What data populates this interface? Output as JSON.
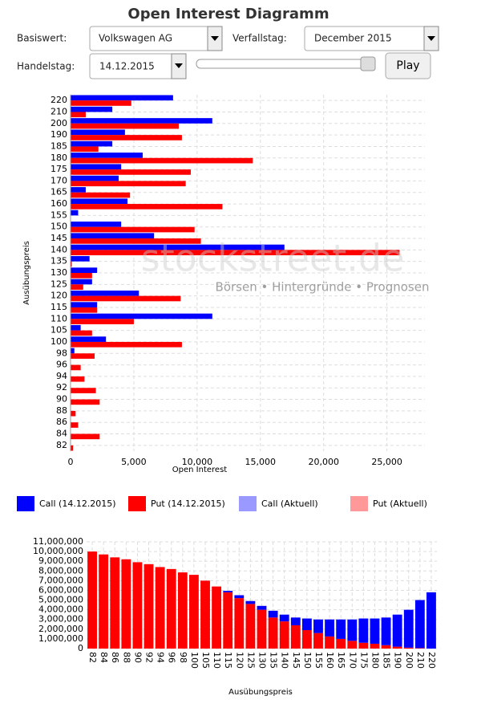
{
  "header": {
    "title": "Open Interest Diagramm"
  },
  "controls": {
    "basiswert_label": "Basiswert:",
    "basiswert_value": "Volkswagen AG",
    "verfallstag_label": "Verfallstag:",
    "verfallstag_value": "December 2015",
    "handelstag_label": "Handelstag:",
    "handelstag_value": "14.12.2015",
    "play": "Play"
  },
  "watermark": {
    "brand": "stockstreet.de",
    "tagline": "Börsen • Hintergründe • Prognosen"
  },
  "chart_data": [
    {
      "type": "barh",
      "xlabel": "Open Interest",
      "ylabel": "Ausübungspreis",
      "grid": true,
      "categories": [
        "82",
        "84",
        "86",
        "88",
        "90",
        "92",
        "94",
        "96",
        "98",
        "100",
        "105",
        "110",
        "115",
        "120",
        "125",
        "130",
        "135",
        "140",
        "145",
        "150",
        "155",
        "160",
        "165",
        "170",
        "175",
        "180",
        "185",
        "190",
        "200",
        "210",
        "220"
      ],
      "series": [
        {
          "name": "Call (14.12.2015)",
          "color": "#0000ff",
          "values": [
            0,
            0,
            0,
            0,
            0,
            0,
            0,
            0,
            300,
            2800,
            800,
            11200,
            2100,
            5400,
            1700,
            2100,
            1500,
            16900,
            6600,
            4000,
            600,
            4500,
            1200,
            3800,
            4000,
            5700,
            3300,
            4300,
            11200,
            3300,
            8100
          ]
        },
        {
          "name": "Put (14.12.2015)",
          "color": "#ff0000",
          "values": [
            200,
            2300,
            600,
            400,
            2300,
            2000,
            1100,
            800,
            1900,
            8800,
            1700,
            5000,
            2100,
            8700,
            1000,
            1700,
            100,
            26000,
            10300,
            9800,
            0,
            12000,
            4700,
            9100,
            9500,
            14400,
            2200,
            8800,
            8550,
            1200,
            4800
          ]
        }
      ],
      "xlim": [
        0,
        28000
      ],
      "xticks": [
        0,
        {
          "value": 5000,
          "label": "5,000"
        },
        {
          "value": 10000,
          "label": "10,000"
        },
        {
          "value": 15000,
          "label": "15,000"
        },
        {
          "value": 20000,
          "label": "20,000"
        },
        {
          "value": 25000,
          "label": "25,000"
        }
      ]
    },
    {
      "type": "stacked_bar",
      "xlabel": "Ausübungspreis",
      "grid": true,
      "categories": [
        "82",
        "84",
        "86",
        "88",
        "90",
        "92",
        "94",
        "96",
        "98",
        "100",
        "105",
        "110",
        "115",
        "120",
        "125",
        "130",
        "135",
        "140",
        "145",
        "150",
        "155",
        "160",
        "165",
        "170",
        "175",
        "180",
        "185",
        "190",
        "200",
        "210",
        "220"
      ],
      "series": [
        {
          "color": "#ff0000",
          "values": [
            10000000,
            9700000,
            9400000,
            9200000,
            8900000,
            8700000,
            8400000,
            8200000,
            7850000,
            7600000,
            7000000,
            6400000,
            5800000,
            5200000,
            4600000,
            4000000,
            3200000,
            2800000,
            2400000,
            1900000,
            1600000,
            1250000,
            1000000,
            800000,
            600000,
            500000,
            350000,
            200000,
            100000,
            50000,
            0
          ]
        },
        {
          "color": "#0000ff",
          "values": [
            0,
            0,
            0,
            0,
            0,
            0,
            0,
            0,
            0,
            0,
            0,
            0,
            150000,
            300000,
            300000,
            400000,
            700000,
            700000,
            800000,
            1200000,
            1400000,
            1750000,
            2000000,
            2200000,
            2500000,
            2600000,
            2850000,
            3300000,
            3900000,
            4950000,
            5800000
          ]
        }
      ],
      "ylim": [
        0,
        11000000
      ],
      "yticks": [
        0,
        {
          "value": 1000000,
          "label": "1,000,000"
        },
        {
          "value": 2000000,
          "label": "2,000,000"
        },
        {
          "value": 3000000,
          "label": "3,000,000"
        },
        {
          "value": 4000000,
          "label": "4,000,000"
        },
        {
          "value": 5000000,
          "label": "5,000,000"
        },
        {
          "value": 6000000,
          "label": "6,000,000"
        },
        {
          "value": 7000000,
          "label": "7,000,000"
        },
        {
          "value": 8000000,
          "label": "8,000,000"
        },
        {
          "value": 9000000,
          "label": "9,000,000"
        },
        {
          "value": 10000000,
          "label": "10,000,000"
        },
        {
          "value": 11000000,
          "label": "11,000,000"
        }
      ]
    }
  ],
  "extra_legend": [
    {
      "name": "Call (Aktuell)",
      "color": "#9999ff"
    },
    {
      "name": "Put (Aktuell)",
      "color": "#ff9999"
    }
  ]
}
